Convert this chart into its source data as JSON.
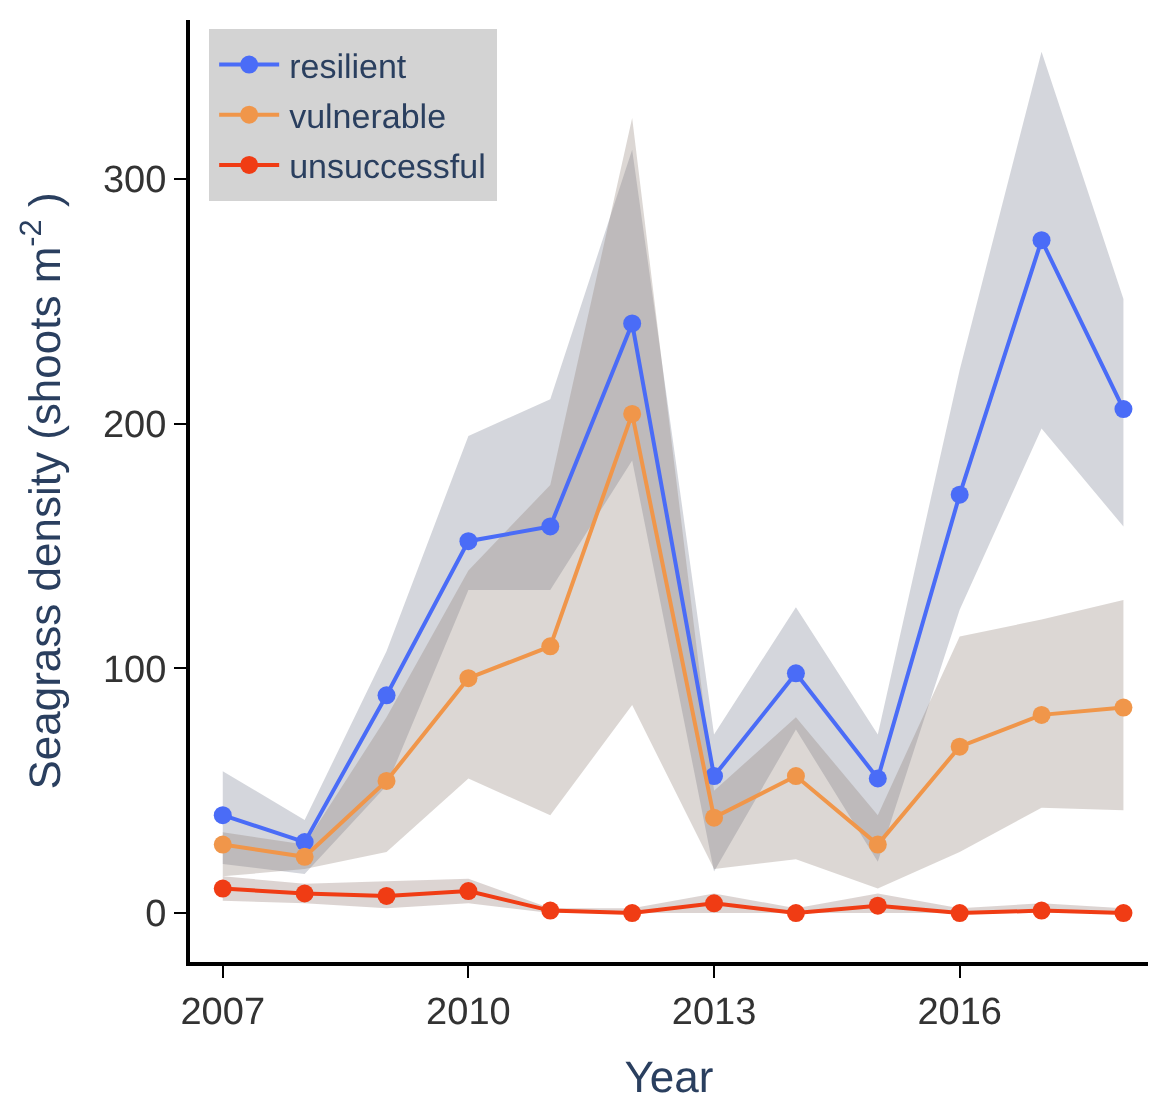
{
  "chart_data": {
    "type": "line",
    "xlabel": "Year",
    "ylabel": "Seagrass density (shoots m$^{-2}$ )",
    "x": [
      2007,
      2008,
      2009,
      2010,
      2011,
      2012,
      2013,
      2014,
      2015,
      2016,
      2017,
      2018
    ],
    "series": [
      {
        "name": "resilient",
        "color": "#4a6cf7",
        "values": [
          40,
          29,
          89,
          152,
          158,
          241,
          56,
          98,
          55,
          171,
          275,
          206
        ],
        "lower": [
          20,
          16,
          52,
          132,
          132,
          185,
          17,
          75,
          21,
          124,
          198,
          158
        ],
        "upper": [
          58,
          38,
          107,
          195,
          210,
          312,
          73,
          125,
          73,
          222,
          352,
          251
        ]
      },
      {
        "name": "vulnerable",
        "color": "#f0964a",
        "values": [
          28,
          23,
          54,
          96,
          109,
          204,
          39,
          56,
          28,
          68,
          81,
          84
        ],
        "lower": [
          15,
          18,
          25,
          55,
          40,
          85,
          18,
          22,
          10,
          25,
          43,
          42
        ],
        "upper": [
          33,
          28,
          80,
          140,
          175,
          325,
          50,
          80,
          40,
          113,
          120,
          128
        ]
      },
      {
        "name": "unsuccessful",
        "color": "#f03c14",
        "values": [
          10,
          8,
          7,
          9,
          1,
          0,
          4,
          0,
          3,
          0,
          1,
          0
        ],
        "lower": [
          5,
          4,
          2,
          4,
          0,
          0,
          0,
          0,
          0,
          0,
          0,
          0
        ],
        "upper": [
          15,
          12,
          13,
          14,
          2,
          2,
          8,
          2,
          8,
          2,
          4,
          2
        ]
      }
    ],
    "xlim": [
      2006.6,
      2018.3
    ],
    "xticks": [
      2007,
      2010,
      2013,
      2016
    ],
    "ylim": [
      -20,
      365
    ],
    "yticks": [
      0,
      100,
      200,
      300
    ],
    "legend": "top left",
    "marker": "circle",
    "line_style": "solid"
  }
}
